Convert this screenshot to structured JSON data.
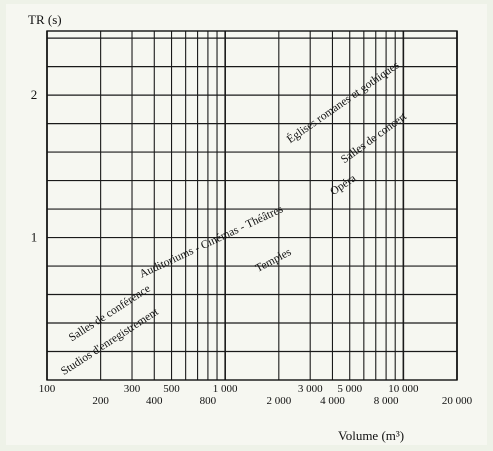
{
  "chart_data": {
    "type": "line",
    "xlabel": "Volume (m³)",
    "ylabel": "TR (s)",
    "x_scale": "log",
    "xlim": [
      100,
      20000
    ],
    "ylim": [
      0,
      2.45
    ],
    "x_ticks": [
      100,
      200,
      300,
      400,
      500,
      800,
      1000,
      2000,
      3000,
      4000,
      5000,
      8000,
      10000,
      20000
    ],
    "x_tick_labels": [
      "100",
      "200",
      "300",
      "400",
      "500",
      "800",
      "1 000",
      "2 000",
      "3 000",
      "4 000",
      "5 000",
      "8 000",
      "10 000",
      "20 000"
    ],
    "y_ticks": [
      1,
      2
    ],
    "y_tick_labels": [
      "1",
      "2"
    ],
    "grid": true,
    "annotations": [
      {
        "text": "Studios d'enregistrement",
        "x": 230,
        "y": 0.25
      },
      {
        "text": "Salles de conférence",
        "x": 230,
        "y": 0.45
      },
      {
        "text": "Auditoriums - Cinémas - Théâtres",
        "x": 850,
        "y": 0.95
      },
      {
        "text": "Temples",
        "x": 1900,
        "y": 0.82
      },
      {
        "text": "Opéra",
        "x": 4700,
        "y": 1.35
      },
      {
        "text": "Salles de concert",
        "x": 7000,
        "y": 1.68
      },
      {
        "text": "Églises romanes et gothiques",
        "x": 4700,
        "y": 1.93
      }
    ]
  }
}
